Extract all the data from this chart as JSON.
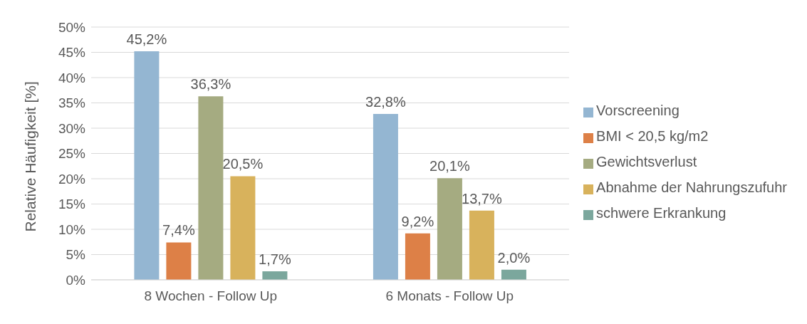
{
  "chart_data": {
    "type": "bar",
    "ylabel": "Relative Häufigkeit [%]",
    "categories": [
      "8 Wochen - Follow Up",
      "6 Monats - Follow Up"
    ],
    "series": [
      {
        "name": "Vorscreening",
        "color": "#94b6d2",
        "values": [
          45.2,
          32.8
        ],
        "value_labels": [
          "45,2%",
          "32,8%"
        ]
      },
      {
        "name": "BMI < 20,5 kg/m2",
        "color": "#dd8047",
        "values": [
          7.4,
          9.2
        ],
        "value_labels": [
          "7,4%",
          "9,2%"
        ]
      },
      {
        "name": "Gewichtsverlust",
        "color": "#a5ab81",
        "values": [
          36.3,
          20.1
        ],
        "value_labels": [
          "36,3%",
          "20,1%"
        ]
      },
      {
        "name": "Abnahme der Nahrungszufuhr",
        "color": "#d8b25c",
        "values": [
          20.5,
          13.7
        ],
        "value_labels": [
          "20,5%",
          "13,7%"
        ]
      },
      {
        "name": "schwere Erkrankung",
        "color": "#7ba79d",
        "values": [
          1.7,
          2.0
        ],
        "value_labels": [
          "1,7%",
          "2,0%"
        ]
      }
    ],
    "ylim": [
      0,
      50
    ],
    "yticks": [
      {
        "value": 0,
        "label": "0%"
      },
      {
        "value": 5,
        "label": "5%"
      },
      {
        "value": 10,
        "label": "10%"
      },
      {
        "value": 15,
        "label": "15%"
      },
      {
        "value": 20,
        "label": "20%"
      },
      {
        "value": 25,
        "label": "25%"
      },
      {
        "value": 30,
        "label": "30%"
      },
      {
        "value": 35,
        "label": "35%"
      },
      {
        "value": 40,
        "label": "40%"
      },
      {
        "value": 45,
        "label": "45%"
      },
      {
        "value": 50,
        "label": "50%"
      }
    ],
    "grid": "y",
    "legend": "right"
  }
}
